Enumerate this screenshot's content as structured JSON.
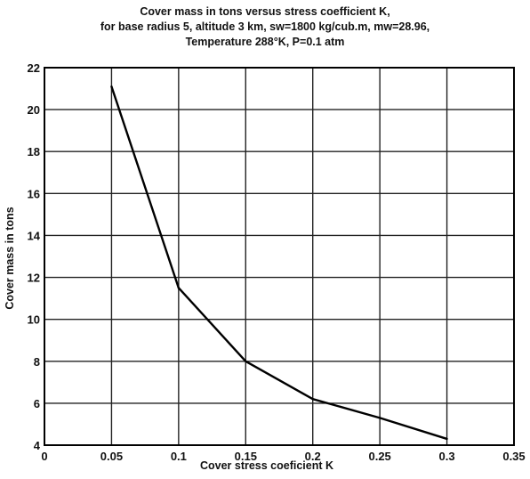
{
  "chart_data": {
    "type": "line",
    "title_lines": [
      "Cover mass in tons  versus stress coefficient K,",
      "for base radius 5, altitude 3 km, sw=1800 kg/cub.m, mw=28.96,",
      "Temperature 288°K, P=0.1 atm"
    ],
    "xlabel": "Cover stress coeficient K",
    "ylabel": "Cover mass in tons",
    "x": [
      0.05,
      0.1,
      0.15,
      0.2,
      0.25,
      0.3
    ],
    "y": [
      21.1,
      11.5,
      8.0,
      6.2,
      5.3,
      4.3
    ],
    "xlim": [
      0,
      0.35
    ],
    "ylim": [
      4,
      22
    ],
    "xticks": [
      "0",
      "0.05",
      "0.1",
      "0.15",
      "0.2",
      "0.25",
      "0.3",
      "0.35"
    ],
    "yticks": [
      "4",
      "6",
      "8",
      "10",
      "12",
      "14",
      "16",
      "18",
      "20",
      "22"
    ],
    "grid": true,
    "line_color": "#000000"
  }
}
